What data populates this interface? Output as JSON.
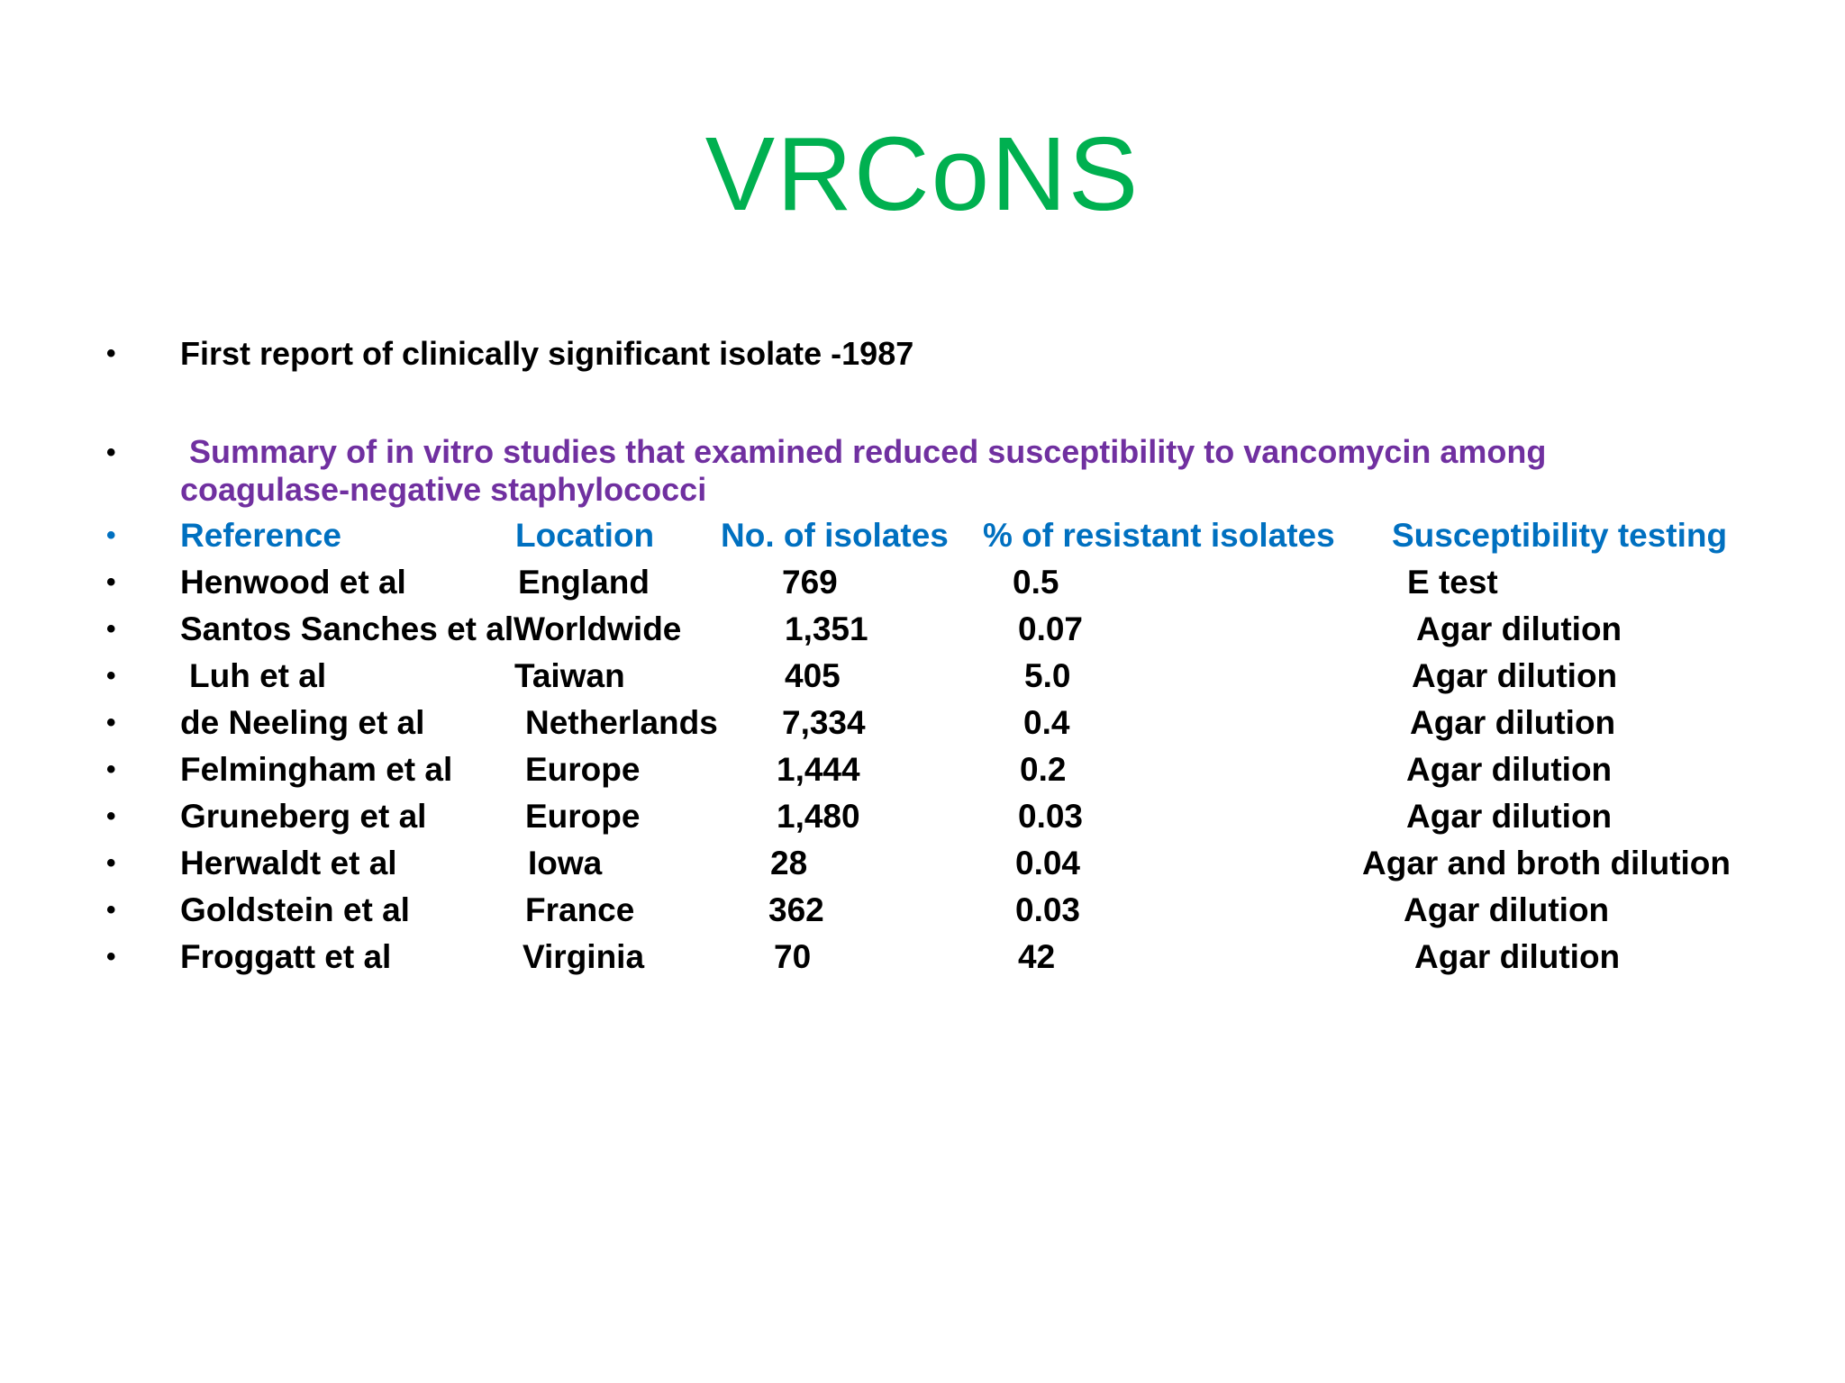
{
  "slide": {
    "title": "VRCoNS",
    "intro_bullet": "First report of clinically significant isolate -1987",
    "summary_line1": "Summary of in vitro studies that examined reduced susceptibility to vancomycin among",
    "summary_line2": "coagulase-negative staphylococci",
    "colors": {
      "title": "#00b050",
      "summary": "#7030a0",
      "header": "#0070c0",
      "body": "#000000"
    }
  },
  "table": {
    "headers": {
      "reference": "Reference",
      "location": "Location",
      "isolates": "No. of isolates",
      "resistant": "% of resistant isolates",
      "testing": "Susceptibility testing"
    },
    "rows": [
      {
        "reference": "Henwood et al",
        "location": "England",
        "isolates": "769",
        "resistant": "0.5",
        "testing": "E test"
      },
      {
        "reference": "Santos Sanches et al",
        "location": "Worldwide",
        "isolates": "1,351",
        "resistant": "0.07",
        "testing": "Agar dilution"
      },
      {
        "reference": "Luh et al",
        "location": "Taiwan",
        "isolates": "405",
        "resistant": "5.0",
        "testing": "Agar dilution"
      },
      {
        "reference": "de Neeling et al",
        "location": "Netherlands",
        "isolates": "7,334",
        "resistant": "0.4",
        "testing": "Agar dilution"
      },
      {
        "reference": "Felmingham et al",
        "location": "Europe",
        "isolates": "1,444",
        "resistant": "0.2",
        "testing": "Agar dilution"
      },
      {
        "reference": "Gruneberg et al",
        "location": "Europe",
        "isolates": "1,480",
        "resistant": "0.03",
        "testing": "Agar dilution"
      },
      {
        "reference": "Herwaldt et al",
        "location": "Iowa",
        "isolates": "28",
        "resistant": "0.04",
        "testing": "Agar and broth dilution"
      },
      {
        "reference": "Goldstein et al",
        "location": "France",
        "isolates": "362",
        "resistant": "0.03",
        "testing": "Agar dilution"
      },
      {
        "reference": "Froggatt et al",
        "location": "Virginia",
        "isolates": "70",
        "resistant": "42",
        "testing": "Agar dilution"
      }
    ]
  }
}
